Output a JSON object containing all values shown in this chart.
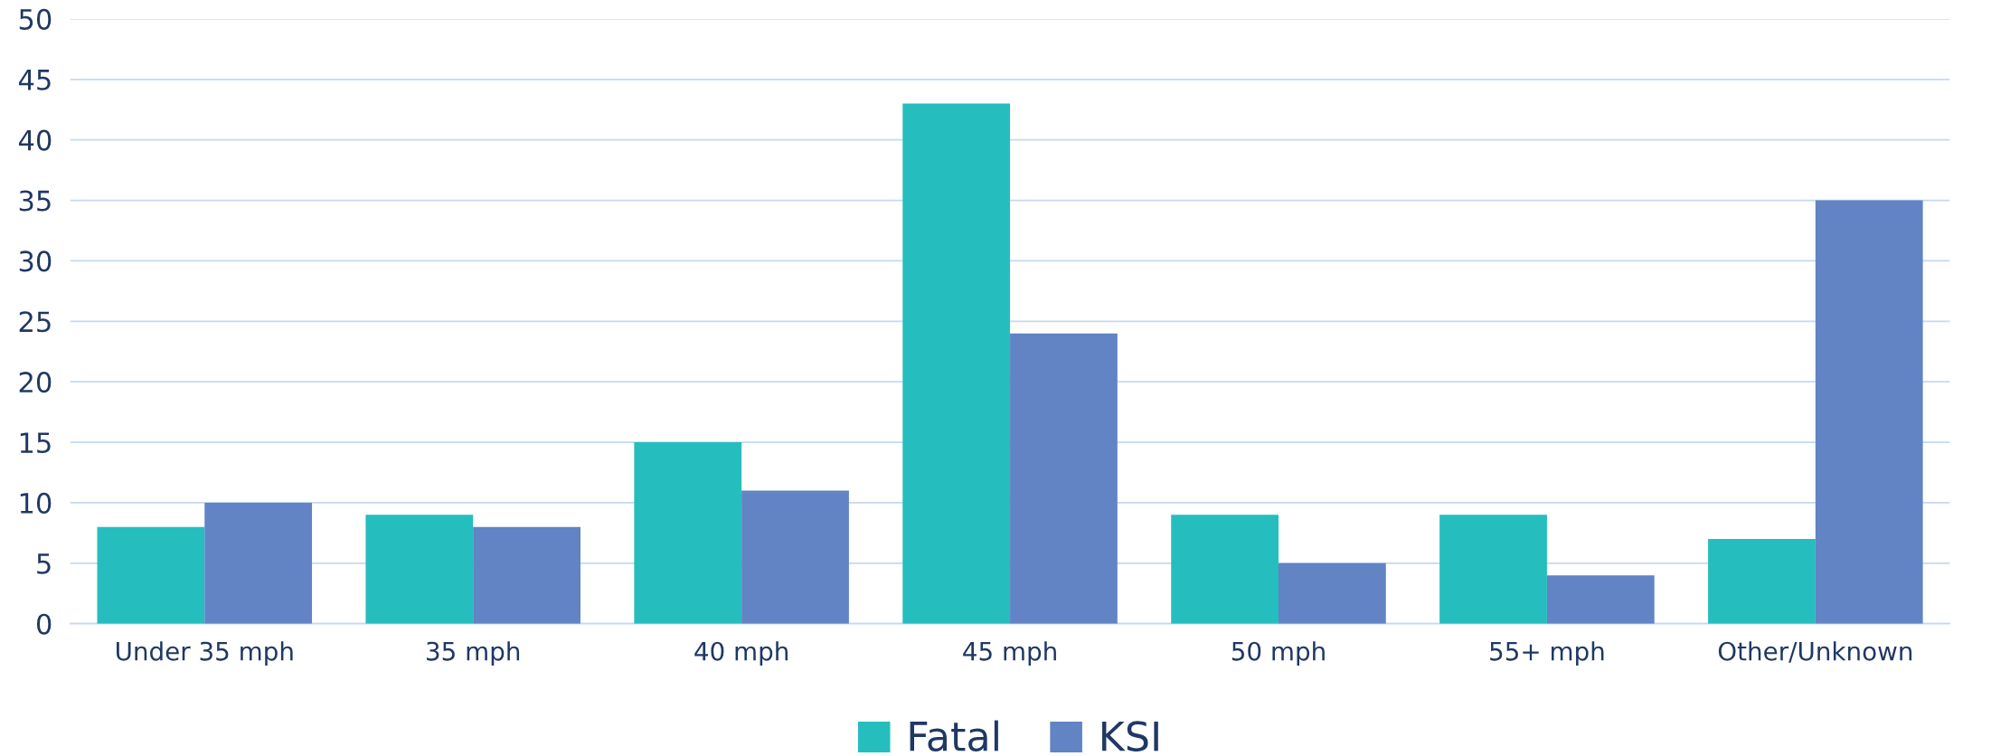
{
  "chart_data": {
    "type": "bar",
    "categories": [
      "Under 35 mph",
      "35 mph",
      "40 mph",
      "45 mph",
      "50 mph",
      "55+ mph",
      "Other/Unknown"
    ],
    "series": [
      {
        "name": "Fatal",
        "color": "#26bdbe",
        "values": [
          8,
          9,
          15,
          43,
          9,
          9,
          7
        ]
      },
      {
        "name": "KSI",
        "color": "#6283c4",
        "values": [
          10,
          8,
          11,
          24,
          5,
          4,
          35
        ]
      }
    ],
    "ylim": [
      0,
      50
    ],
    "yticks": [
      0,
      5,
      10,
      15,
      20,
      25,
      30,
      35,
      40,
      45,
      50
    ],
    "grid": "y",
    "legend": "bottom"
  }
}
